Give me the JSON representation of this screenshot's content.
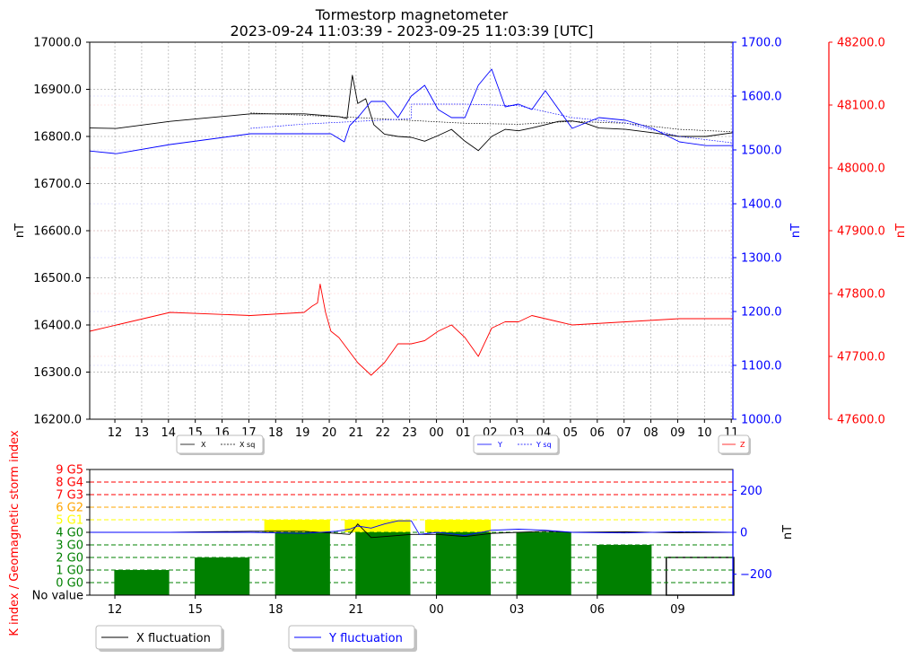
{
  "chart_data": [
    {
      "type": "line",
      "title": "Tormestorp magnetometer",
      "subtitle": "2023-09-24 11:03:39 - 2023-09-25 11:03:39 [UTC]",
      "x_tick_labels": [
        "12",
        "13",
        "14",
        "15",
        "16",
        "17",
        "18",
        "19",
        "20",
        "21",
        "22",
        "23",
        "00",
        "01",
        "02",
        "03",
        "04",
        "05",
        "06",
        "07",
        "08",
        "09",
        "10",
        "11"
      ],
      "x_range": [
        "2023-09-24 11:03:39",
        "2023-09-25 11:03:39"
      ],
      "grid": true,
      "axes": {
        "left": {
          "label": "nT",
          "ylim": [
            16200,
            17000
          ],
          "ticks": [
            "16200.0",
            "16300.0",
            "16400.0",
            "16500.0",
            "16600.0",
            "16700.0",
            "16800.0",
            "16900.0",
            "17000.0"
          ],
          "color": "#000000"
        },
        "right1": {
          "label": "nT",
          "ylim": [
            1000,
            1700
          ],
          "ticks": [
            "1000.0",
            "1100.0",
            "1200.0",
            "1300.0",
            "1400.0",
            "1500.0",
            "1600.0",
            "1700.0"
          ],
          "color": "#0000ff"
        },
        "right2": {
          "label": "nT",
          "ylim": [
            47600,
            48200
          ],
          "ticks": [
            "47600.0",
            "47700.0",
            "47800.0",
            "47900.0",
            "48000.0",
            "48100.0",
            "48200.0"
          ],
          "color": "#ff0000"
        }
      },
      "series": [
        {
          "name": "X",
          "axis": "left",
          "color": "#000000",
          "x_hours": [
            0,
            1,
            3,
            6,
            8,
            9.3,
            9.6,
            9.8,
            10,
            10.3,
            10.6,
            11,
            11.5,
            12,
            12.5,
            13,
            13.5,
            14,
            14.5,
            15,
            15.5,
            16,
            16.5,
            17,
            17.5,
            18,
            18.5,
            19,
            20,
            21,
            22,
            23,
            24
          ],
          "values": [
            16818,
            16817,
            16832,
            16848,
            16848,
            16842,
            16838,
            16930,
            16870,
            16880,
            16825,
            16805,
            16800,
            16798,
            16790,
            16802,
            16815,
            16790,
            16770,
            16800,
            16815,
            16812,
            16818,
            16825,
            16832,
            16833,
            16828,
            16818,
            16815,
            16808,
            16800,
            16800,
            16808
          ]
        },
        {
          "name": "X sq",
          "axis": "left",
          "dashed": true,
          "color": "#000000",
          "x_hours": [
            6,
            8,
            10,
            12,
            14,
            16,
            18,
            20,
            22,
            24
          ],
          "values": [
            16850,
            16845,
            16840,
            16834,
            16828,
            16826,
            16832,
            16828,
            16815,
            16810
          ]
        },
        {
          "name": "Y",
          "axis": "right1",
          "color": "#0000ff",
          "x_hours": [
            0,
            1,
            3,
            6,
            8,
            9,
            9.5,
            9.7,
            10,
            10.5,
            11,
            11.5,
            12,
            12.5,
            13,
            13.5,
            14,
            14.5,
            15,
            15.5,
            16,
            16.5,
            17,
            18,
            19,
            20,
            21,
            22,
            23,
            24
          ],
          "values": [
            1498,
            1493,
            1510,
            1530,
            1530,
            1530,
            1515,
            1545,
            1560,
            1590,
            1590,
            1560,
            1600,
            1620,
            1575,
            1560,
            1560,
            1620,
            1650,
            1580,
            1585,
            1575,
            1610,
            1540,
            1560,
            1555,
            1540,
            1515,
            1508,
            1508
          ]
        },
        {
          "name": "Y sq",
          "axis": "right1",
          "dashed": true,
          "color": "#0000ff",
          "x_hours": [
            6,
            8,
            10,
            12,
            12.01,
            14,
            16,
            18,
            20,
            22,
            24
          ],
          "values": [
            1540,
            1548,
            1553,
            1558,
            1585,
            1585,
            1582,
            1560,
            1550,
            1525,
            1513
          ]
        },
        {
          "name": "Z",
          "axis": "right2",
          "color": "#ff0000",
          "x_hours": [
            0,
            1,
            3,
            6,
            8,
            8.3,
            8.5,
            8.6,
            8.8,
            9,
            9.3,
            10,
            10.5,
            11,
            11.5,
            12,
            12.5,
            13,
            13.5,
            14,
            14.5,
            15,
            15.5,
            16,
            16.5,
            17,
            17.5,
            18,
            20,
            22,
            24
          ],
          "values": [
            47740,
            47750,
            47770,
            47765,
            47770,
            47780,
            47785,
            47815,
            47770,
            47740,
            47730,
            47690,
            47670,
            47690,
            47720,
            47720,
            47725,
            47740,
            47750,
            47730,
            47700,
            47745,
            47755,
            47755,
            47765,
            47760,
            47755,
            47750,
            47755,
            47760,
            47760
          ]
        }
      ],
      "legends": [
        {
          "entries": [
            "X",
            "X sq"
          ]
        },
        {
          "entries": [
            "Y",
            "Y sq"
          ]
        },
        {
          "entries": [
            "Z"
          ]
        }
      ]
    },
    {
      "type": "bar",
      "ylabel": "K index / Geomagnetic storm index",
      "y2label": "nT",
      "x_tick_labels": [
        "12",
        "15",
        "18",
        "21",
        "00",
        "03",
        "06",
        "09"
      ],
      "k_levels": [
        {
          "label": "No value",
          "color": "#000000"
        },
        {
          "label": "0 G0",
          "color": "#008000",
          "line": "#008000"
        },
        {
          "label": "1 G0",
          "color": "#008000",
          "line": "#008000"
        },
        {
          "label": "2 G0",
          "color": "#008000",
          "line": "#008000"
        },
        {
          "label": "3 G0",
          "color": "#008000",
          "line": "#008000"
        },
        {
          "label": "4 G0",
          "color": "#008000",
          "line": "#008000"
        },
        {
          "label": "5 G1",
          "color": "#ffff00",
          "line": "#ffff00"
        },
        {
          "label": "6 G2",
          "color": "#ffa500",
          "line": "#ffa500"
        },
        {
          "label": "7 G3",
          "color": "#ff0000",
          "line": "#ff0000"
        },
        {
          "label": "8 G4",
          "color": "#ff0000",
          "line": "#ff0000"
        },
        {
          "label": "9 G5",
          "color": "#ff0000",
          "line": "#ff0000"
        }
      ],
      "y2_ticks": [
        "200",
        "0",
        "−200"
      ],
      "y2lim": [
        -300,
        300
      ],
      "k_bars": [
        {
          "start_hour": 0,
          "k": 1,
          "peak": null
        },
        {
          "start_hour": 3,
          "k": 2,
          "peak": null
        },
        {
          "start_hour": 6,
          "k": 4,
          "peak": 5
        },
        {
          "start_hour": 9,
          "k": 4,
          "peak": 5
        },
        {
          "start_hour": 12,
          "k": 4,
          "peak": 5
        },
        {
          "start_hour": 15,
          "k": 4,
          "peak": null
        },
        {
          "start_hour": 18,
          "k": 3,
          "peak": null
        },
        {
          "start_hour": 21,
          "k": 2,
          "peak": null,
          "empty": true
        }
      ],
      "series": [
        {
          "name": "X fluctuation",
          "color": "#000000",
          "x_hours": [
            0,
            3,
            6,
            8,
            9.2,
            9.7,
            10,
            10.5,
            11,
            12,
            13,
            14,
            15,
            16,
            17,
            18,
            20,
            22,
            24
          ],
          "values": [
            0,
            0,
            5,
            5,
            -5,
            -10,
            40,
            -25,
            -20,
            -10,
            -10,
            -20,
            -5,
            0,
            5,
            0,
            2,
            -2,
            0
          ]
        },
        {
          "name": "Y fluctuation",
          "color": "#0000ff",
          "x_hours": [
            0,
            3,
            6,
            8,
            9.2,
            9.7,
            10,
            10.5,
            11,
            11.5,
            12,
            12.3,
            13,
            14,
            15,
            16,
            17,
            18,
            20,
            22,
            24
          ],
          "values": [
            0,
            0,
            0,
            -5,
            5,
            15,
            30,
            20,
            40,
            55,
            55,
            -10,
            0,
            -15,
            10,
            15,
            10,
            0,
            -3,
            3,
            0
          ]
        }
      ]
    }
  ]
}
